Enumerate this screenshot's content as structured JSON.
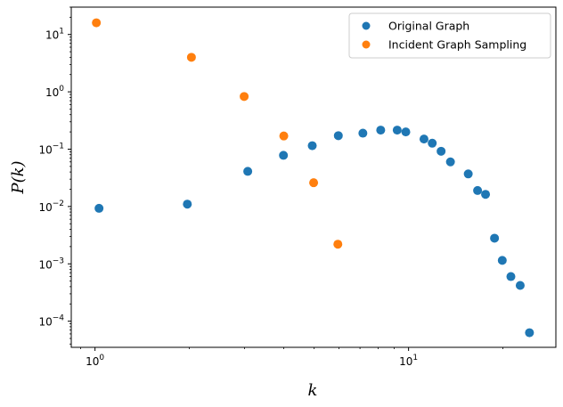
{
  "chart_data": {
    "type": "scatter",
    "title": "",
    "xlabel": "k",
    "ylabel": "P(k)",
    "xscale": "log",
    "yscale": "log",
    "xlim": [
      0.84,
      29.5
    ],
    "ylim": [
      3.5e-05,
      30
    ],
    "grid": false,
    "legend_position": "top-right",
    "x_ticks": [
      {
        "value": 1,
        "base": "10",
        "exp": "0"
      },
      {
        "value": 10,
        "base": "10",
        "exp": "1"
      }
    ],
    "y_ticks": [
      {
        "value": 0.0001,
        "base": "10",
        "exp": "−4"
      },
      {
        "value": 0.001,
        "base": "10",
        "exp": "−3"
      },
      {
        "value": 0.01,
        "base": "10",
        "exp": "−2"
      },
      {
        "value": 0.1,
        "base": "10",
        "exp": "−1"
      },
      {
        "value": 1,
        "base": "10",
        "exp": "0"
      },
      {
        "value": 10,
        "base": "10",
        "exp": "1"
      }
    ],
    "series": [
      {
        "name": "Original Graph",
        "color": "#1f77b4",
        "points": [
          {
            "x": 1.03,
            "y": 0.0093
          },
          {
            "x": 1.97,
            "y": 0.011
          },
          {
            "x": 3.07,
            "y": 0.041
          },
          {
            "x": 3.99,
            "y": 0.078
          },
          {
            "x": 4.93,
            "y": 0.115
          },
          {
            "x": 5.97,
            "y": 0.172
          },
          {
            "x": 7.15,
            "y": 0.19
          },
          {
            "x": 8.15,
            "y": 0.215
          },
          {
            "x": 9.2,
            "y": 0.215
          },
          {
            "x": 9.8,
            "y": 0.2
          },
          {
            "x": 11.2,
            "y": 0.15
          },
          {
            "x": 11.9,
            "y": 0.127
          },
          {
            "x": 12.7,
            "y": 0.092
          },
          {
            "x": 13.6,
            "y": 0.06
          },
          {
            "x": 15.5,
            "y": 0.037
          },
          {
            "x": 16.6,
            "y": 0.019
          },
          {
            "x": 17.6,
            "y": 0.0163
          },
          {
            "x": 18.8,
            "y": 0.0028
          },
          {
            "x": 19.9,
            "y": 0.00115
          },
          {
            "x": 21.2,
            "y": 0.0006
          },
          {
            "x": 22.7,
            "y": 0.00042
          },
          {
            "x": 24.3,
            "y": 6.3e-05
          }
        ]
      },
      {
        "name": "Incident Graph Sampling",
        "color": "#ff7f0e",
        "points": [
          {
            "x": 1.01,
            "y": 16
          },
          {
            "x": 2.03,
            "y": 4.0
          },
          {
            "x": 2.99,
            "y": 0.83
          },
          {
            "x": 4.0,
            "y": 0.17
          },
          {
            "x": 4.98,
            "y": 0.026
          },
          {
            "x": 5.95,
            "y": 0.0022
          }
        ]
      }
    ]
  }
}
